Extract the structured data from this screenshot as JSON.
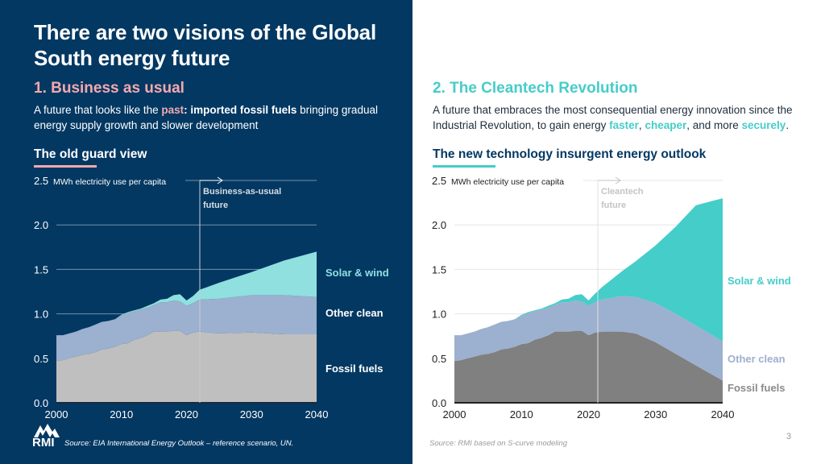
{
  "header": {
    "title": "There are two visions of the Global South energy future"
  },
  "left": {
    "section_title": "1. Business as usual",
    "desc_pre": "A future that looks like the ",
    "desc_hl": "past",
    "desc_colon": ": ",
    "desc_bold": "imported fossil fuels",
    "desc_post": " bringing gradual energy supply growth and slower development",
    "chart_title": "The old guard view",
    "source": "Source: EIA International Energy Outlook – reference scenario, UN.",
    "logo_text": "RMI"
  },
  "right": {
    "section_title": "2. The Cleantech Revolution",
    "desc_pre": "A future that embraces the most consequential energy innovation since the Industrial Revolution, to gain energy ",
    "desc_hl1": "faster",
    "desc_sep1": ", ",
    "desc_hl2": "cheaper",
    "desc_sep2": ", and more ",
    "desc_hl3": "securely",
    "desc_end": ".",
    "chart_title": "The new technology insurgent energy outlook",
    "source": "Source: RMI based on S-curve modeling",
    "page_number": "3"
  },
  "colors": {
    "navy": "#033862",
    "pink": "#f4a9ae",
    "teal": "#45cdc9",
    "light_teal": "#8fe0df",
    "other_clean": "#9cb0cf",
    "fossil_left": "#bfbfbf",
    "fossil_right": "#808080"
  },
  "chart_data": [
    {
      "type": "area",
      "stacked": true,
      "title": "The old guard view",
      "ylabel": "MWh electricity use per capita",
      "xlabel": "",
      "xlim": [
        2000,
        2040
      ],
      "ylim": [
        0,
        2.5
      ],
      "x_ticks": [
        "2000",
        "2010",
        "2020",
        "2030",
        "2040"
      ],
      "y_ticks": [
        "0.0",
        "0.5",
        "1.0",
        "1.5",
        "2.0",
        "2.5"
      ],
      "grid": true,
      "annotation": {
        "x": 2022,
        "text": "Business-as-usual future"
      },
      "legend_placement": "right",
      "x": [
        2000,
        2001,
        2002,
        2003,
        2004,
        2005,
        2006,
        2007,
        2008,
        2009,
        2010,
        2011,
        2012,
        2013,
        2014,
        2015,
        2016,
        2017,
        2018,
        2019,
        2020,
        2021,
        2022,
        2025,
        2030,
        2035,
        2040
      ],
      "series": [
        {
          "name": "Fossil fuels",
          "values": [
            0.47,
            0.48,
            0.5,
            0.52,
            0.54,
            0.55,
            0.57,
            0.6,
            0.61,
            0.63,
            0.66,
            0.67,
            0.71,
            0.73,
            0.76,
            0.8,
            0.8,
            0.8,
            0.81,
            0.81,
            0.76,
            0.79,
            0.8,
            0.78,
            0.79,
            0.77,
            0.77
          ]
        },
        {
          "name": "Other clean",
          "values": [
            0.29,
            0.28,
            0.28,
            0.28,
            0.29,
            0.3,
            0.31,
            0.31,
            0.31,
            0.31,
            0.32,
            0.34,
            0.32,
            0.32,
            0.31,
            0.3,
            0.33,
            0.33,
            0.34,
            0.33,
            0.33,
            0.33,
            0.36,
            0.39,
            0.42,
            0.44,
            0.42
          ]
        },
        {
          "name": "Solar & wind",
          "values": [
            0.0,
            0.0,
            0.0,
            0.0,
            0.0,
            0.0,
            0.0,
            0.0,
            0.0,
            0.0,
            0.01,
            0.01,
            0.01,
            0.01,
            0.02,
            0.02,
            0.03,
            0.04,
            0.06,
            0.08,
            0.06,
            0.08,
            0.11,
            0.18,
            0.26,
            0.39,
            0.51
          ]
        }
      ]
    },
    {
      "type": "area",
      "stacked": true,
      "title": "The new technology insurgent energy outlook",
      "ylabel": "MWh electricity use per capita",
      "xlabel": "",
      "xlim": [
        2000,
        2040
      ],
      "ylim": [
        0,
        2.5
      ],
      "x_ticks": [
        "2000",
        "2010",
        "2020",
        "2030",
        "2040"
      ],
      "y_ticks": [
        "0.0",
        "0.5",
        "1.0",
        "1.5",
        "2.0",
        "2.5"
      ],
      "grid": true,
      "annotation": {
        "x": 2022,
        "text": "Cleantech future"
      },
      "legend_placement": "right",
      "x": [
        2000,
        2001,
        2002,
        2003,
        2004,
        2005,
        2006,
        2007,
        2008,
        2009,
        2010,
        2011,
        2012,
        2013,
        2014,
        2015,
        2016,
        2017,
        2018,
        2019,
        2020,
        2021,
        2022,
        2025,
        2027,
        2030,
        2033,
        2036,
        2040
      ],
      "series": [
        {
          "name": "Fossil fuels",
          "values": [
            0.47,
            0.48,
            0.5,
            0.52,
            0.54,
            0.55,
            0.57,
            0.6,
            0.61,
            0.63,
            0.66,
            0.67,
            0.71,
            0.73,
            0.76,
            0.8,
            0.8,
            0.8,
            0.81,
            0.81,
            0.76,
            0.79,
            0.8,
            0.8,
            0.78,
            0.68,
            0.55,
            0.42,
            0.25
          ]
        },
        {
          "name": "Other clean",
          "values": [
            0.29,
            0.28,
            0.28,
            0.28,
            0.29,
            0.3,
            0.31,
            0.31,
            0.31,
            0.31,
            0.32,
            0.34,
            0.32,
            0.32,
            0.31,
            0.3,
            0.33,
            0.33,
            0.34,
            0.33,
            0.33,
            0.34,
            0.36,
            0.4,
            0.41,
            0.44,
            0.45,
            0.45,
            0.44
          ]
        },
        {
          "name": "Solar & wind",
          "values": [
            0.0,
            0.0,
            0.0,
            0.0,
            0.0,
            0.0,
            0.0,
            0.0,
            0.0,
            0.0,
            0.01,
            0.01,
            0.01,
            0.01,
            0.02,
            0.02,
            0.03,
            0.04,
            0.06,
            0.08,
            0.06,
            0.1,
            0.14,
            0.28,
            0.4,
            0.65,
            0.98,
            1.35,
            1.61
          ]
        }
      ]
    }
  ]
}
